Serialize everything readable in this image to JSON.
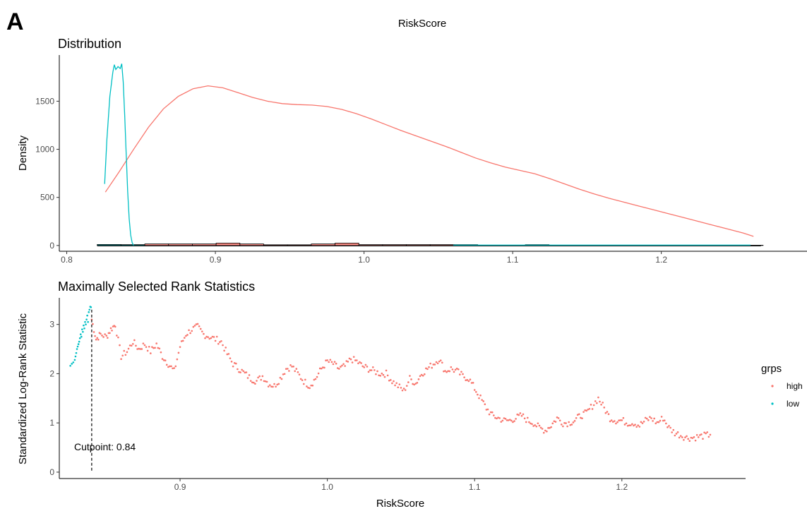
{
  "figure": {
    "panel_letter": "A",
    "title": "RiskScore"
  },
  "chart_data": [
    {
      "type": "line",
      "title": "Distribution",
      "xlabel": "",
      "ylabel": "Density",
      "xlim": [
        0.795,
        1.298
      ],
      "ylim": [
        -60,
        1980
      ],
      "x_ticks": [
        0.8,
        0.9,
        1.0,
        1.1,
        1.2
      ],
      "x_tick_labels": [
        "0.8",
        "0.9",
        "1.0",
        "1.1",
        "1.2"
      ],
      "y_ticks": [
        0,
        500,
        1000,
        1500
      ],
      "y_tick_labels": [
        "0",
        "500",
        "1000",
        "1500"
      ],
      "grid": false,
      "series": [
        {
          "color": "#F8766D",
          "x": [
            0.826,
            0.835,
            0.845,
            0.855,
            0.865,
            0.875,
            0.885,
            0.895,
            0.905,
            0.915,
            0.925,
            0.935,
            0.945,
            0.955,
            0.965,
            0.975,
            0.985,
            0.995,
            1.005,
            1.015,
            1.025,
            1.035,
            1.045,
            1.055,
            1.065,
            1.075,
            1.085,
            1.095,
            1.105,
            1.115,
            1.125,
            1.135,
            1.145,
            1.155,
            1.165,
            1.175,
            1.185,
            1.195,
            1.205,
            1.215,
            1.225,
            1.235,
            1.245,
            1.255,
            1.262
          ],
          "y": [
            555,
            760,
            1000,
            1230,
            1420,
            1550,
            1630,
            1660,
            1640,
            1590,
            1540,
            1500,
            1475,
            1465,
            1460,
            1445,
            1415,
            1370,
            1315,
            1255,
            1195,
            1140,
            1085,
            1030,
            970,
            910,
            860,
            815,
            780,
            745,
            695,
            640,
            585,
            535,
            490,
            450,
            410,
            370,
            330,
            290,
            250,
            210,
            170,
            130,
            95
          ]
        },
        {
          "color": "#00BFC4",
          "x": [
            0.8255,
            0.827,
            0.829,
            0.831,
            0.832,
            0.833,
            0.8345,
            0.836,
            0.837,
            0.838,
            0.839,
            0.84,
            0.841,
            0.842,
            0.843,
            0.844,
            0.845
          ],
          "y": [
            640,
            1100,
            1550,
            1800,
            1880,
            1830,
            1860,
            1840,
            1890,
            1700,
            1350,
            950,
            560,
            280,
            110,
            30,
            0
          ]
        }
      ],
      "baseline": {
        "x_start": 0.8205,
        "x_end": 1.267
      },
      "histogram": {
        "bin_width": 0.016,
        "bin_starts": [
          0.8205,
          0.8365,
          0.8525,
          0.8685,
          0.8845,
          0.9005,
          0.9165,
          0.9325,
          0.9485,
          0.9645,
          0.9805,
          0.9965,
          1.0125,
          1.0285,
          1.0445,
          1.0605,
          1.0765,
          1.0925,
          1.1085,
          1.1245,
          1.1405,
          1.1565,
          1.1725,
          1.1885,
          1.2045,
          1.2205,
          1.2365,
          1.2525
        ],
        "high_counts": [
          0,
          0,
          22,
          22,
          22,
          34,
          22,
          10,
          10,
          22,
          34,
          12,
          12,
          12,
          12,
          12,
          4,
          4,
          12,
          4,
          4,
          4,
          4,
          4,
          4,
          4,
          4,
          4
        ],
        "low_counts": [
          14,
          12,
          0,
          0,
          0,
          0,
          0,
          0,
          0,
          0,
          0,
          0,
          0,
          0,
          0,
          0,
          0,
          0,
          0,
          0,
          0,
          0,
          0,
          0,
          0,
          0,
          0,
          0
        ]
      }
    },
    {
      "type": "scatter",
      "title": "Maximally Selected Rank Statistics",
      "xlabel": "RiskScore",
      "ylabel": "Standardized Log-Rank Statistic",
      "xlim": [
        0.818,
        1.284
      ],
      "ylim": [
        -0.13,
        3.54
      ],
      "x_ticks": [
        0.9,
        1.0,
        1.1,
        1.2
      ],
      "x_tick_labels": [
        "0.9",
        "1.0",
        "1.1",
        "1.2"
      ],
      "y_ticks": [
        0,
        1,
        2,
        3
      ],
      "y_tick_labels": [
        "0",
        "1",
        "2",
        "3"
      ],
      "grid": false,
      "cutpoint": {
        "value": 0.84,
        "label": "Cutpoint: 0.84"
      },
      "legend": {
        "title": "grps",
        "position": "right",
        "items": [
          {
            "label": "high",
            "color": "#F8766D"
          },
          {
            "label": "low",
            "color": "#00BFC4"
          }
        ]
      },
      "series": [
        {
          "name": "low",
          "color": "#00BFC4",
          "x": [
            0.8255,
            0.8265,
            0.8275,
            0.8285,
            0.829,
            0.8295,
            0.83,
            0.8305,
            0.831,
            0.8315,
            0.832,
            0.8325,
            0.833,
            0.8335,
            0.834,
            0.8345,
            0.835,
            0.8355,
            0.836,
            0.8365,
            0.837,
            0.8375,
            0.838,
            0.8385,
            0.839,
            0.8395
          ],
          "y": [
            2.16,
            2.2,
            2.23,
            2.28,
            2.35,
            2.42,
            2.5,
            2.55,
            2.6,
            2.65,
            2.72,
            2.8,
            2.75,
            2.9,
            2.85,
            2.98,
            2.92,
            3.05,
            3.0,
            3.1,
            3.18,
            3.05,
            3.25,
            3.3,
            3.36,
            3.35
          ]
        },
        {
          "name": "high",
          "color": "#F8766D",
          "knot_x": [
            0.84,
            0.843,
            0.846,
            0.85,
            0.853,
            0.856,
            0.86,
            0.864,
            0.868,
            0.872,
            0.876,
            0.88,
            0.884,
            0.888,
            0.892,
            0.896,
            0.9,
            0.904,
            0.908,
            0.912,
            0.916,
            0.92,
            0.924,
            0.928,
            0.932,
            0.936,
            0.94,
            0.944,
            0.948,
            0.952,
            0.956,
            0.96,
            0.964,
            0.968,
            0.972,
            0.976,
            0.98,
            0.984,
            0.988,
            0.992,
            0.996,
            1.0,
            1.004,
            1.008,
            1.012,
            1.016,
            1.02,
            1.024,
            1.028,
            1.032,
            1.036,
            1.04,
            1.044,
            1.048,
            1.052,
            1.056,
            1.06,
            1.064,
            1.068,
            1.072,
            1.076,
            1.08,
            1.084,
            1.088,
            1.092,
            1.096,
            1.1,
            1.104,
            1.108,
            1.112,
            1.116,
            1.12,
            1.124,
            1.128,
            1.132,
            1.136,
            1.14,
            1.144,
            1.148,
            1.152,
            1.156,
            1.16,
            1.164,
            1.168,
            1.172,
            1.176,
            1.18,
            1.184,
            1.188,
            1.192,
            1.196,
            1.2,
            1.204,
            1.208,
            1.212,
            1.216,
            1.22,
            1.224,
            1.228,
            1.232,
            1.236,
            1.24,
            1.244,
            1.248,
            1.252,
            1.256,
            1.26
          ],
          "knot_y": [
            3.1,
            2.7,
            2.8,
            2.75,
            2.9,
            3.0,
            2.35,
            2.45,
            2.65,
            2.5,
            2.6,
            2.45,
            2.6,
            2.35,
            2.2,
            2.05,
            2.55,
            2.8,
            2.9,
            2.95,
            2.8,
            2.75,
            2.7,
            2.65,
            2.4,
            2.2,
            2.1,
            2.0,
            1.9,
            1.85,
            1.95,
            1.8,
            1.75,
            1.9,
            2.1,
            2.15,
            2.0,
            1.85,
            1.75,
            1.9,
            2.1,
            2.25,
            2.2,
            2.1,
            2.15,
            2.3,
            2.25,
            2.15,
            2.1,
            2.05,
            2.0,
            2.0,
            1.85,
            1.75,
            1.65,
            1.9,
            1.8,
            2.0,
            2.1,
            2.2,
            2.3,
            2.05,
            2.1,
            2.05,
            1.95,
            1.9,
            1.7,
            1.5,
            1.3,
            1.15,
            1.1,
            1.05,
            1.05,
            1.1,
            1.15,
            1.05,
            1.0,
            0.9,
            0.85,
            0.95,
            1.1,
            1.0,
            1.0,
            1.05,
            1.15,
            1.2,
            1.35,
            1.5,
            1.3,
            1.1,
            1.05,
            1.05,
            1.0,
            1.0,
            0.95,
            1.05,
            1.1,
            1.0,
            1.1,
            0.9,
            0.8,
            0.75,
            0.7,
            0.7,
            0.72,
            0.74,
            0.76
          ]
        }
      ]
    }
  ],
  "colors": {
    "high": "#F8766D",
    "low": "#00BFC4",
    "hist_high": "#F8766D",
    "hist_low": "#00BFC4",
    "axis": "#000000"
  }
}
